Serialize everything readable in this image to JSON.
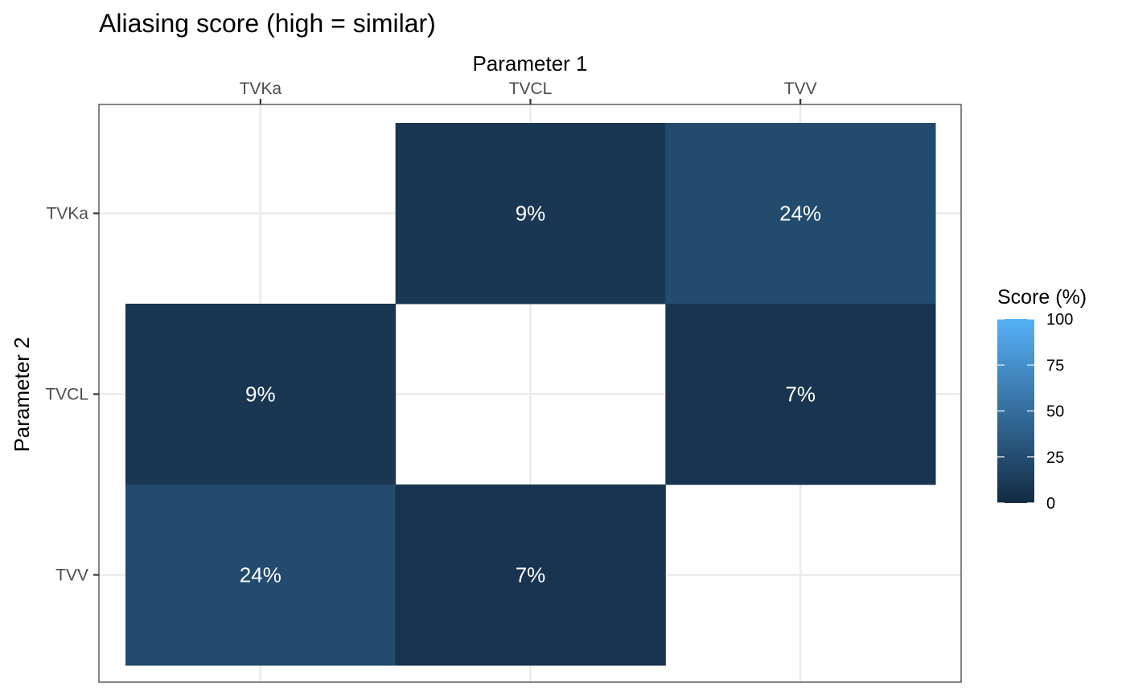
{
  "chart_data": {
    "type": "heatmap",
    "title": "Aliasing score (high = similar)",
    "xlabel": "Parameter 1",
    "ylabel": "Parameter 2",
    "x_categories": [
      "TVKa",
      "TVCL",
      "TVV"
    ],
    "y_categories": [
      "TVKa",
      "TVCL",
      "TVV"
    ],
    "x_axis_position": "top",
    "cells": [
      {
        "x": "TVCL",
        "y": "TVKa",
        "value": 9,
        "label": "9%"
      },
      {
        "x": "TVV",
        "y": "TVKa",
        "value": 24,
        "label": "24%"
      },
      {
        "x": "TVKa",
        "y": "TVCL",
        "value": 9,
        "label": "9%"
      },
      {
        "x": "TVV",
        "y": "TVCL",
        "value": 7,
        "label": "7%"
      },
      {
        "x": "TVKa",
        "y": "TVV",
        "value": 24,
        "label": "24%"
      },
      {
        "x": "TVCL",
        "y": "TVV",
        "value": 7,
        "label": "7%"
      }
    ],
    "legend": {
      "title": "Score (%)",
      "range": [
        0,
        100
      ],
      "ticks": [
        100,
        75,
        50,
        25,
        0
      ],
      "low_color": "#132B43",
      "high_color": "#56B1F7",
      "position": "right"
    },
    "grid": true
  }
}
